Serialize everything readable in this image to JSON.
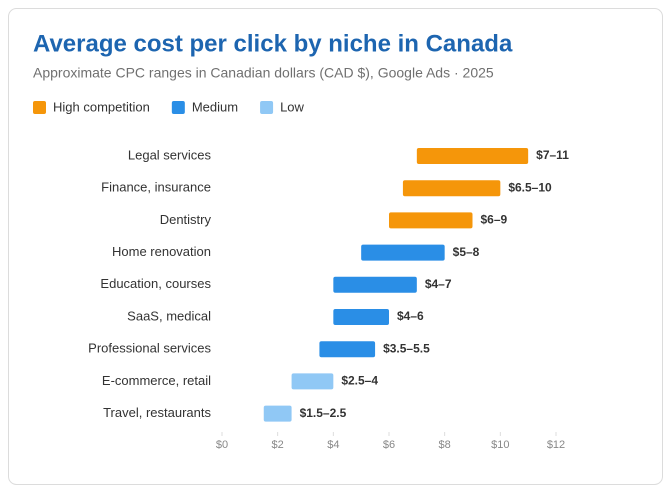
{
  "chart_data": {
    "type": "range-bar",
    "title": "Average cost per click by niche in Canada",
    "subtitle": "Approximate CPC ranges in Canadian dollars (CAD $), Google Ads · 2025",
    "xlim": [
      0,
      12
    ],
    "xticks": [
      {
        "value": 0,
        "label": "$0"
      },
      {
        "value": 2,
        "label": "$2"
      },
      {
        "value": 4,
        "label": "$4"
      },
      {
        "value": 6,
        "label": "$6"
      },
      {
        "value": 8,
        "label": "$8"
      },
      {
        "value": 10,
        "label": "$10"
      },
      {
        "value": 12,
        "label": "$12"
      }
    ],
    "series": [
      {
        "name": "High competition",
        "color": "#f5960a",
        "categories": [
          "Legal services",
          "Finance, insurance",
          "Dentistry"
        ],
        "low": [
          7,
          6.5,
          6
        ],
        "high": [
          11,
          10,
          9
        ],
        "value_labels": [
          "$7–11",
          "$6.5–10",
          "$6–9"
        ]
      },
      {
        "name": "Medium",
        "color": "#2a8ee6",
        "categories": [
          "Home renovation",
          "Education, courses",
          "SaaS, medical",
          "Professional services"
        ],
        "low": [
          5,
          4,
          4,
          3.5
        ],
        "high": [
          8,
          7,
          6,
          5.5
        ],
        "value_labels": [
          "$5–8",
          "$4–7",
          "$4–6",
          "$3.5–5.5"
        ]
      },
      {
        "name": "Low",
        "color": "#90c8f5",
        "categories": [
          "E-commerce, retail",
          "Travel, restaurants"
        ],
        "low": [
          2.5,
          1.5
        ],
        "high": [
          4,
          2.5
        ],
        "value_labels": [
          "$2.5–4",
          "$1.5–2.5"
        ]
      }
    ]
  }
}
